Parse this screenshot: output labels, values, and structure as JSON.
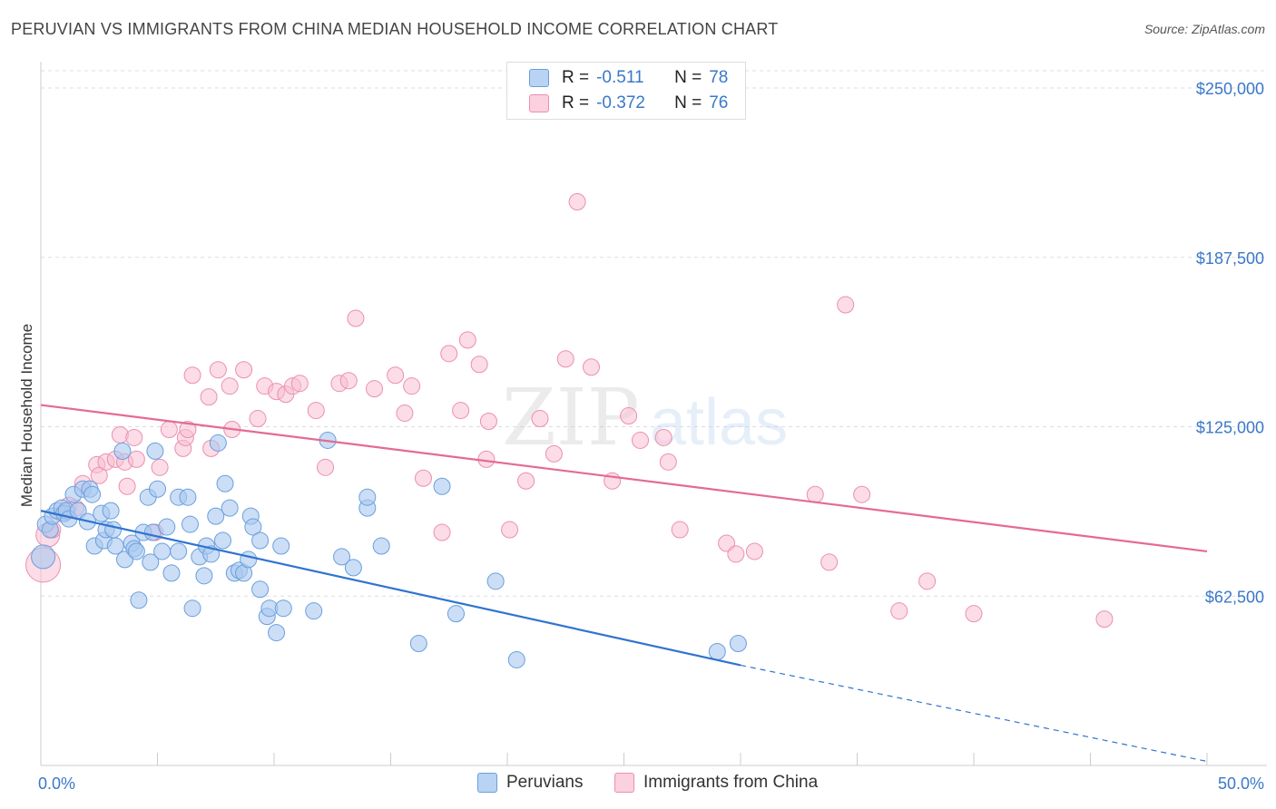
{
  "header": {
    "title": "PERUVIAN VS IMMIGRANTS FROM CHINA MEDIAN HOUSEHOLD INCOME CORRELATION CHART",
    "source": "Source: ZipAtlas.com"
  },
  "watermark": {
    "zip": "ZIP",
    "atlas": "atlas"
  },
  "legend": {
    "rows": [
      {
        "r_label": "R =",
        "r_value": "-0.511",
        "n_label": "N =",
        "n_value": "78"
      },
      {
        "r_label": "R =",
        "r_value": "-0.372",
        "n_label": "N =",
        "n_value": "76"
      }
    ]
  },
  "bottom_legend": {
    "peruvians": "Peruvians",
    "china": "Immigrants from China"
  },
  "colors": {
    "blue_fill": "#a8c8f0",
    "blue_stroke": "#6a9fdc",
    "blue_line": "#2f74d0",
    "pink_fill": "#f8c0d4",
    "pink_stroke": "#ec8fb0",
    "pink_line": "#e46a94",
    "tick_label": "#3a78c9"
  },
  "chart_data": {
    "type": "scatter",
    "title": "PERUVIAN VS IMMIGRANTS FROM CHINA MEDIAN HOUSEHOLD INCOME CORRELATION CHART",
    "ylabel": "Median Household Income",
    "xlabel": "",
    "xlim": [
      0,
      50
    ],
    "ylim": [
      0,
      250000
    ],
    "x_tick_labels": [
      "0.0%",
      "50.0%"
    ],
    "y_ticks": [
      62500,
      125000,
      187500,
      250000
    ],
    "y_tick_labels": [
      "$62,500",
      "$125,000",
      "$187,500",
      "$250,000"
    ],
    "grid": "horizontal dashed",
    "legend_placement": "top-center",
    "series": [
      {
        "name": "Peruvians",
        "trend": {
          "x0": 0,
          "y0": 94000,
          "x1": 30,
          "y1": 37000,
          "dashed_to": [
            50,
            1500
          ]
        },
        "points": [
          [
            0.1,
            77000
          ],
          [
            0.2,
            89000
          ],
          [
            0.4,
            87000
          ],
          [
            0.5,
            92000
          ],
          [
            0.7,
            94000
          ],
          [
            0.9,
            95000
          ],
          [
            1.0,
            93000
          ],
          [
            1.1,
            94000
          ],
          [
            1.2,
            91000
          ],
          [
            1.4,
            100000
          ],
          [
            1.6,
            94000
          ],
          [
            1.8,
            102000
          ],
          [
            2.0,
            90000
          ],
          [
            2.1,
            102000
          ],
          [
            2.2,
            100000
          ],
          [
            2.3,
            81000
          ],
          [
            2.6,
            93000
          ],
          [
            2.7,
            83000
          ],
          [
            2.8,
            87000
          ],
          [
            3.0,
            94000
          ],
          [
            3.1,
            87000
          ],
          [
            3.2,
            81000
          ],
          [
            3.5,
            116000
          ],
          [
            3.6,
            76000
          ],
          [
            3.9,
            82000
          ],
          [
            4.0,
            80000
          ],
          [
            4.1,
            79000
          ],
          [
            4.2,
            61000
          ],
          [
            4.4,
            86000
          ],
          [
            4.6,
            99000
          ],
          [
            4.7,
            75000
          ],
          [
            4.8,
            86000
          ],
          [
            4.9,
            116000
          ],
          [
            5.0,
            102000
          ],
          [
            5.2,
            79000
          ],
          [
            5.4,
            88000
          ],
          [
            5.6,
            71000
          ],
          [
            5.9,
            79000
          ],
          [
            5.9,
            99000
          ],
          [
            6.3,
            99000
          ],
          [
            6.4,
            89000
          ],
          [
            6.5,
            58000
          ],
          [
            6.8,
            77000
          ],
          [
            7.0,
            70000
          ],
          [
            7.1,
            81000
          ],
          [
            7.3,
            78000
          ],
          [
            7.5,
            92000
          ],
          [
            7.6,
            119000
          ],
          [
            7.8,
            83000
          ],
          [
            7.9,
            104000
          ],
          [
            8.1,
            95000
          ],
          [
            8.3,
            71000
          ],
          [
            8.5,
            72000
          ],
          [
            8.7,
            71000
          ],
          [
            8.9,
            76000
          ],
          [
            9.0,
            92000
          ],
          [
            9.1,
            88000
          ],
          [
            9.4,
            83000
          ],
          [
            9.4,
            65000
          ],
          [
            9.7,
            55000
          ],
          [
            9.8,
            58000
          ],
          [
            10.1,
            49000
          ],
          [
            10.3,
            81000
          ],
          [
            10.4,
            58000
          ],
          [
            11.7,
            57000
          ],
          [
            12.3,
            120000
          ],
          [
            12.9,
            77000
          ],
          [
            13.4,
            73000
          ],
          [
            14.0,
            95000
          ],
          [
            14.0,
            99000
          ],
          [
            14.6,
            81000
          ],
          [
            16.2,
            45000
          ],
          [
            17.2,
            103000
          ],
          [
            17.8,
            56000
          ],
          [
            19.5,
            68000
          ],
          [
            20.4,
            39000
          ],
          [
            29.9,
            45000
          ],
          [
            29.0,
            42000
          ]
        ]
      },
      {
        "name": "Immigrants from China",
        "trend": {
          "x0": 0,
          "y0": 133000,
          "x1": 50,
          "y1": 79000
        },
        "points": [
          [
            0.1,
            74000
          ],
          [
            0.3,
            85000
          ],
          [
            0.5,
            87000
          ],
          [
            0.9,
            93000
          ],
          [
            1.2,
            96000
          ],
          [
            1.5,
            95000
          ],
          [
            1.8,
            104000
          ],
          [
            2.4,
            111000
          ],
          [
            2.5,
            107000
          ],
          [
            2.8,
            112000
          ],
          [
            3.2,
            113000
          ],
          [
            3.4,
            122000
          ],
          [
            3.6,
            112000
          ],
          [
            3.7,
            103000
          ],
          [
            4.0,
            121000
          ],
          [
            4.1,
            113000
          ],
          [
            4.9,
            86000
          ],
          [
            5.1,
            110000
          ],
          [
            5.5,
            124000
          ],
          [
            6.1,
            117000
          ],
          [
            6.2,
            121000
          ],
          [
            6.3,
            124000
          ],
          [
            6.5,
            144000
          ],
          [
            7.2,
            136000
          ],
          [
            7.3,
            117000
          ],
          [
            7.6,
            146000
          ],
          [
            8.1,
            140000
          ],
          [
            8.2,
            124000
          ],
          [
            8.7,
            146000
          ],
          [
            9.3,
            128000
          ],
          [
            9.6,
            140000
          ],
          [
            10.1,
            138000
          ],
          [
            10.5,
            137000
          ],
          [
            10.8,
            140000
          ],
          [
            11.1,
            141000
          ],
          [
            11.8,
            131000
          ],
          [
            12.2,
            110000
          ],
          [
            12.8,
            141000
          ],
          [
            13.2,
            142000
          ],
          [
            13.5,
            165000
          ],
          [
            14.3,
            139000
          ],
          [
            15.2,
            144000
          ],
          [
            15.6,
            130000
          ],
          [
            15.9,
            140000
          ],
          [
            16.4,
            106000
          ],
          [
            17.2,
            86000
          ],
          [
            17.5,
            152000
          ],
          [
            18.0,
            131000
          ],
          [
            18.3,
            157000
          ],
          [
            18.8,
            148000
          ],
          [
            19.1,
            113000
          ],
          [
            19.2,
            127000
          ],
          [
            20.1,
            87000
          ],
          [
            20.8,
            105000
          ],
          [
            21.4,
            128000
          ],
          [
            22.0,
            115000
          ],
          [
            22.5,
            150000
          ],
          [
            23.0,
            208000
          ],
          [
            23.6,
            147000
          ],
          [
            24.5,
            105000
          ],
          [
            25.2,
            129000
          ],
          [
            25.7,
            120000
          ],
          [
            26.7,
            121000
          ],
          [
            26.9,
            112000
          ],
          [
            27.4,
            87000
          ],
          [
            29.4,
            82000
          ],
          [
            29.8,
            78000
          ],
          [
            30.6,
            79000
          ],
          [
            33.2,
            100000
          ],
          [
            33.8,
            75000
          ],
          [
            34.5,
            170000
          ],
          [
            35.2,
            100000
          ],
          [
            36.8,
            57000
          ],
          [
            38.0,
            68000
          ],
          [
            40.0,
            56000
          ],
          [
            45.6,
            54000
          ]
        ]
      }
    ]
  }
}
